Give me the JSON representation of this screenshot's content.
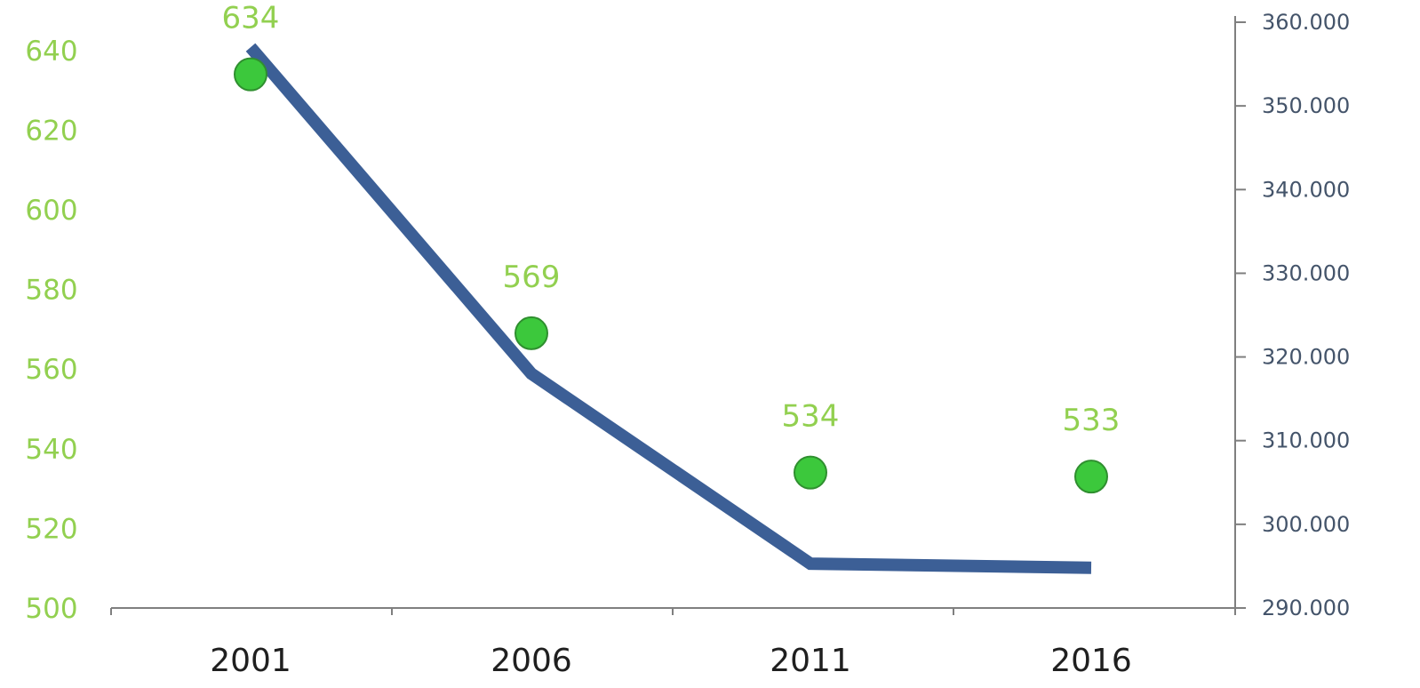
{
  "chart_data": {
    "type": "line",
    "categories": [
      "2001",
      "2006",
      "2011",
      "2016"
    ],
    "series": [
      {
        "axis": "left",
        "kind": "scatter",
        "values": [
          634,
          569,
          534,
          533
        ],
        "data_labels": [
          "634",
          "569",
          "534",
          "533"
        ],
        "color": "#3cc83c",
        "label_color": "#92d050"
      },
      {
        "axis": "right",
        "kind": "line",
        "values": [
          357000,
          318000,
          295300,
          294800
        ],
        "color": "#3c5f96"
      }
    ],
    "left_axis": {
      "ylim": [
        500,
        650
      ],
      "ticks": [
        500,
        520,
        540,
        560,
        580,
        600,
        620,
        640
      ],
      "tick_labels": [
        "500",
        "520",
        "540",
        "560",
        "580",
        "600",
        "620",
        "640"
      ],
      "color": "#92d050"
    },
    "right_axis": {
      "ylim": [
        290000,
        360000
      ],
      "ticks": [
        290000,
        300000,
        310000,
        320000,
        330000,
        340000,
        350000,
        360000
      ],
      "tick_labels": [
        "290.000",
        "300.000",
        "310.000",
        "320.000",
        "330.000",
        "340.000",
        "350.000",
        "360.000"
      ],
      "color": "#44546a"
    },
    "x_axis": {
      "tick_labels": [
        "2001",
        "2006",
        "2011",
        "2016"
      ],
      "color": "#1f1f1f"
    },
    "grid": false,
    "legend": "none",
    "title": "",
    "xlabel": "",
    "ylabel": ""
  }
}
